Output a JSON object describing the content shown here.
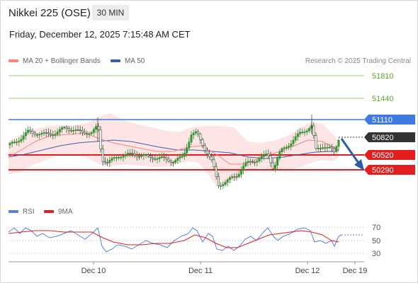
{
  "header": {
    "title": "Nikkei 225 (OSE)",
    "timeframe": "30 MIN"
  },
  "datetime": "Friday, December 12, 2025 7:15:48 AM CET",
  "legend": {
    "ma20": "MA 20 + Bollinger Bands",
    "ma50": "MA 50",
    "credit": "Research © 2025 Trading Central"
  },
  "colors": {
    "ma20": "#f4847c",
    "ma50": "#3b5fa8",
    "resistance": "#7dc142",
    "pivot": "#3d7be0",
    "support": "#e31e1e",
    "candle_up": "#2e8b2e",
    "candle_down": "#2f4f2f",
    "arrow": "#2a5ca8",
    "bands": "#fde2e2"
  },
  "levels": [
    {
      "value": "51810",
      "type": "resistance"
    },
    {
      "value": "51440",
      "type": "resistance"
    },
    {
      "value": "51110",
      "type": "pivot"
    },
    {
      "value": "50820",
      "type": "last"
    },
    {
      "value": "50520",
      "type": "support"
    },
    {
      "value": "50290",
      "type": "support"
    }
  ],
  "rsi": {
    "legend_rsi": "RSI",
    "legend_ma": "9MA",
    "levels": [
      "70",
      "50",
      "30"
    ]
  },
  "x_axis": {
    "labels": [
      "Dec 10",
      "Dec 11",
      "Dec 12",
      "Dec 19"
    ]
  }
}
